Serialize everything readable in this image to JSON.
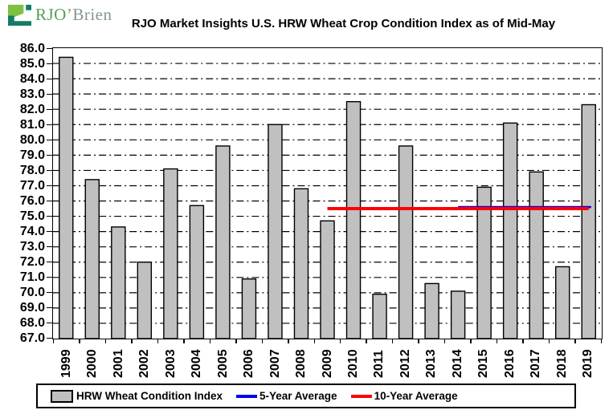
{
  "header": {
    "logo": {
      "text_primary": "RJO",
      "text_secondary": "’Brien",
      "colors": {
        "text_primary": "#55a055",
        "text_secondary": "#87968f",
        "mark_light_green": "#7dc142",
        "mark_teal": "#127c67"
      }
    }
  },
  "chart_data": {
    "type": "bar",
    "title": "RJO Market Insights U.S. HRW Wheat Crop Condition Index as of Mid-May",
    "categories": [
      "1999",
      "2000",
      "2001",
      "2002",
      "2003",
      "2004",
      "2005",
      "2006",
      "2007",
      "2008",
      "2009",
      "2010",
      "2011",
      "2012",
      "2013",
      "2014",
      "2015",
      "2016",
      "2017",
      "2018",
      "2019"
    ],
    "series": [
      {
        "name": "HRW Wheat Condition Index",
        "type": "bar",
        "color": "#c0c0c0",
        "border_color": "#000000",
        "values": [
          85.4,
          77.4,
          74.3,
          72.0,
          78.1,
          75.7,
          79.6,
          70.9,
          81.0,
          76.8,
          74.7,
          82.5,
          69.9,
          79.6,
          70.6,
          70.1,
          76.9,
          81.1,
          77.9,
          71.7,
          82.3
        ]
      },
      {
        "name": "5-Year Average",
        "type": "line",
        "color": "#0000ee",
        "value": 75.6,
        "span": [
          "2014",
          "2019"
        ]
      },
      {
        "name": "10-Year Average",
        "type": "line",
        "color": "#ff0000",
        "value": 75.5,
        "span": [
          "2009",
          "2019"
        ]
      }
    ],
    "xlabel": "",
    "ylabel": "",
    "ylim": [
      67.0,
      86.0
    ],
    "ytick_step": 1.0,
    "ytick_format": "one-decimal",
    "grid": "horizontal-dash-dot",
    "gridline_color": "#000000",
    "x_tick_label_rotation": -90,
    "legend_position": "bottom"
  }
}
